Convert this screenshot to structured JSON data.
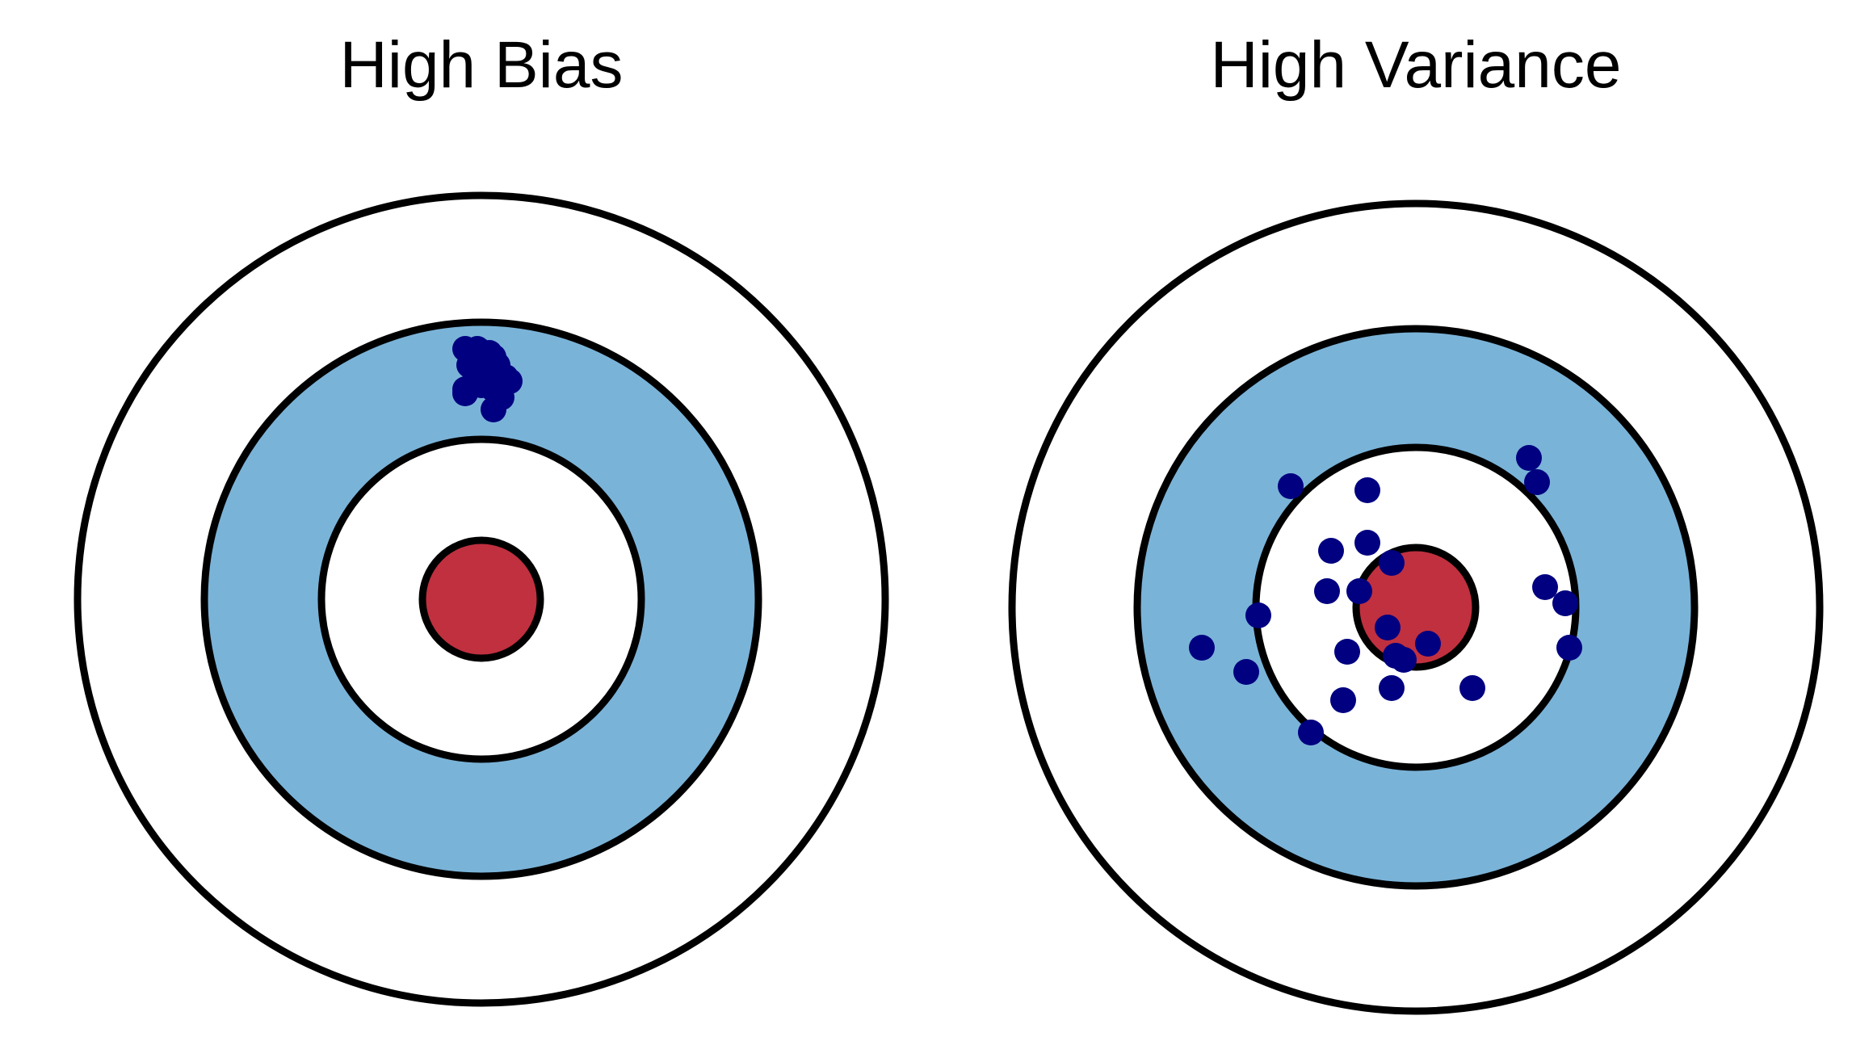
{
  "colors": {
    "ring_light": "#ffffff",
    "ring_blue": "#7ab3d8",
    "bullseye": "#c0303f",
    "outline": "#000000",
    "dot": "#000080"
  },
  "panels": [
    {
      "title": "High Bias",
      "shots": [
        [
          -0.04,
          0.62
        ],
        [
          -0.03,
          0.58
        ],
        [
          -0.01,
          0.62
        ],
        [
          0.02,
          0.61
        ],
        [
          0.03,
          0.6
        ],
        [
          -0.02,
          0.57
        ],
        [
          0.01,
          0.57
        ],
        [
          0.02,
          0.57
        ],
        [
          0.04,
          0.56
        ],
        [
          0.06,
          0.55
        ],
        [
          -0.04,
          0.52
        ],
        [
          0.0,
          0.53
        ],
        [
          0.03,
          0.52
        ],
        [
          0.05,
          0.5
        ],
        [
          0.07,
          0.54
        ],
        [
          0.03,
          0.47
        ],
        [
          -0.04,
          0.51
        ],
        [
          0.01,
          0.55
        ],
        [
          0.04,
          0.58
        ],
        [
          0.0,
          0.6
        ]
      ]
    },
    {
      "title": "High Variance",
      "shots": [
        [
          -0.31,
          0.3
        ],
        [
          -0.12,
          0.29
        ],
        [
          0.28,
          0.37
        ],
        [
          0.3,
          0.31
        ],
        [
          -0.21,
          0.14
        ],
        [
          -0.12,
          0.16
        ],
        [
          -0.06,
          0.11
        ],
        [
          -0.22,
          0.04
        ],
        [
          -0.14,
          0.04
        ],
        [
          0.32,
          0.05
        ],
        [
          0.37,
          0.01
        ],
        [
          -0.39,
          -0.02
        ],
        [
          -0.53,
          -0.1
        ],
        [
          -0.42,
          -0.16
        ],
        [
          -0.17,
          -0.11
        ],
        [
          -0.05,
          -0.12
        ],
        [
          -0.07,
          -0.05
        ],
        [
          -0.03,
          -0.13
        ],
        [
          0.03,
          -0.09
        ],
        [
          0.38,
          -0.1
        ],
        [
          -0.18,
          -0.23
        ],
        [
          -0.06,
          -0.2
        ],
        [
          0.14,
          -0.2
        ],
        [
          -0.26,
          -0.31
        ]
      ]
    }
  ]
}
